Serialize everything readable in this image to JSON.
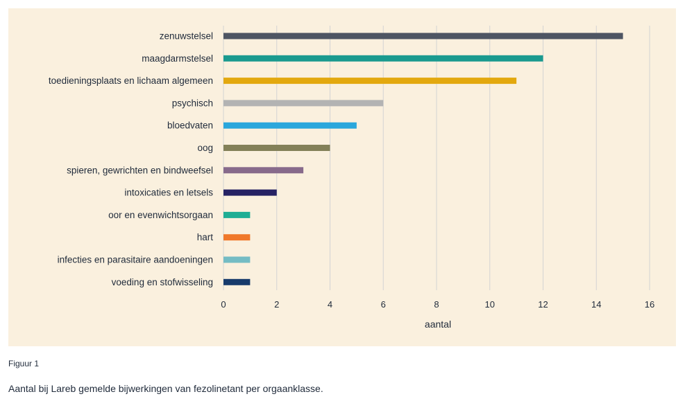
{
  "chart_data": {
    "type": "bar",
    "orientation": "horizontal",
    "categories": [
      "zenuwstelsel",
      "maagdarmstelsel",
      "toedieningsplaats en lichaam algemeen",
      "psychisch",
      "bloedvaten",
      "oog",
      "spieren, gewrichten en bindweefsel",
      "intoxicaties en letsels",
      "oor en evenwichtsorgaan",
      "hart",
      "infecties en parasitaire aandoeningen",
      "voeding en stofwisseling"
    ],
    "values": [
      15,
      12,
      11,
      6,
      5,
      4,
      3,
      2,
      1,
      1,
      1,
      1
    ],
    "colors": [
      "#4e5563",
      "#1a9a8f",
      "#e3a80e",
      "#b3b3b3",
      "#2aa7dc",
      "#838058",
      "#876a8b",
      "#262263",
      "#1fae94",
      "#f0782a",
      "#74bcc4",
      "#173b6b"
    ],
    "xlabel": "aantal",
    "ylabel": "",
    "xlim": [
      0,
      16
    ],
    "xticks": [
      0,
      2,
      4,
      6,
      8,
      10,
      12,
      14,
      16
    ],
    "grid": "vertical",
    "background": "#faf0de",
    "gridColor": "#d3d3d3"
  },
  "figure": {
    "label": "Figuur 1",
    "caption": "Aantal bij Lareb gemelde bijwerkingen van fezolinetant per orgaanklasse."
  }
}
